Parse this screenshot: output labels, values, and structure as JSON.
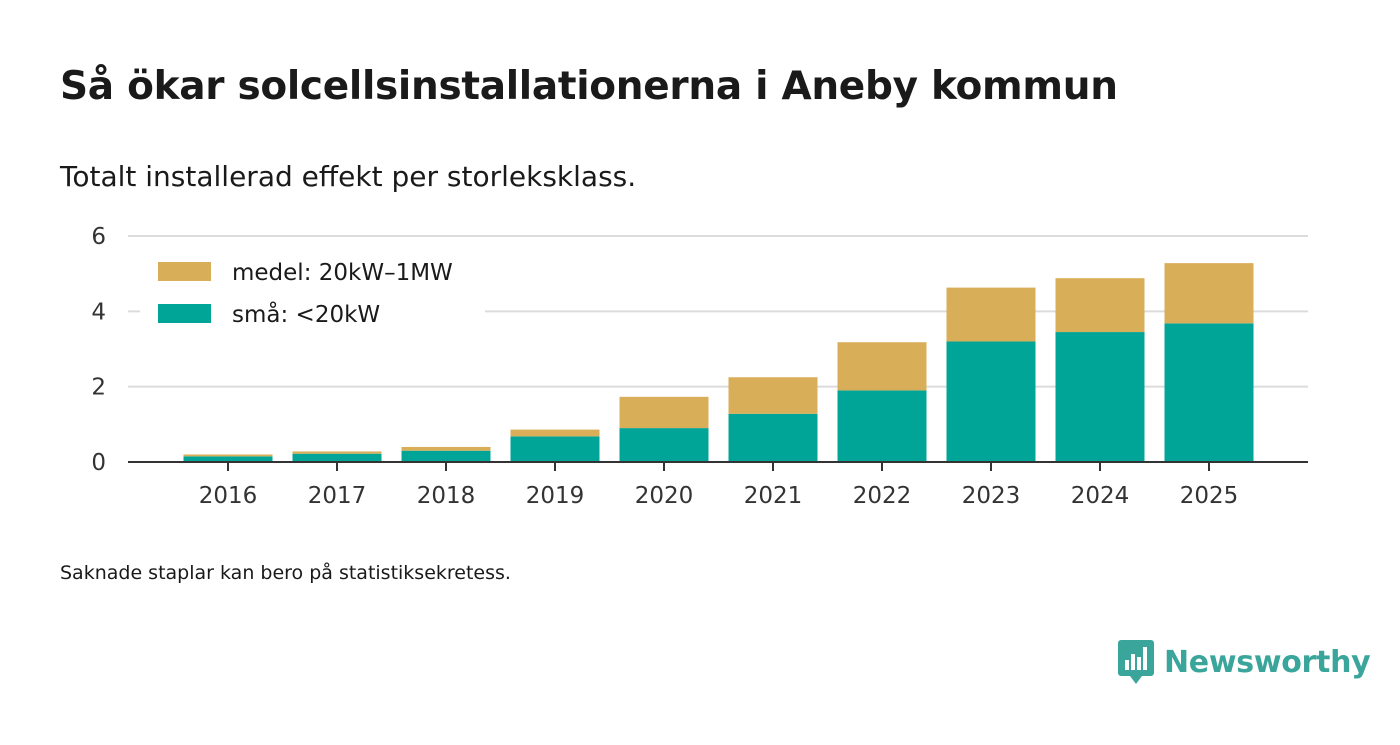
{
  "header": {
    "title": "Så ökar solcellsinstallationerna i Aneby kommun",
    "subtitle": "Totalt installerad effekt per storleksklass."
  },
  "chart_data": {
    "type": "bar",
    "stacked": true,
    "title": "Så ökar solcellsinstallationerna i Aneby kommun",
    "subtitle": "Totalt installerad effekt per storleksklass.",
    "xlabel": "",
    "ylabel": "",
    "categories": [
      "2016",
      "2017",
      "2018",
      "2019",
      "2020",
      "2021",
      "2022",
      "2023",
      "2024",
      "2025"
    ],
    "series": [
      {
        "name": "små: <20kW",
        "color": "#00a598",
        "values": [
          0.15,
          0.22,
          0.3,
          0.68,
          0.9,
          1.28,
          1.9,
          3.2,
          3.45,
          3.68
        ]
      },
      {
        "name": "medel: 20kW–1MW",
        "color": "#d9ae58",
        "values": [
          0.05,
          0.06,
          0.1,
          0.18,
          0.83,
          0.97,
          1.28,
          1.43,
          1.43,
          1.6
        ]
      }
    ],
    "ylim": [
      0,
      6
    ],
    "yticks": [
      0,
      2,
      4,
      6
    ],
    "grid": true,
    "legend_position": "top-left"
  },
  "footer": {
    "note": "Saknade staplar kan bero på statistiksekretess.",
    "brand": "Newsworthy",
    "brand_color": "#3aa59b"
  }
}
